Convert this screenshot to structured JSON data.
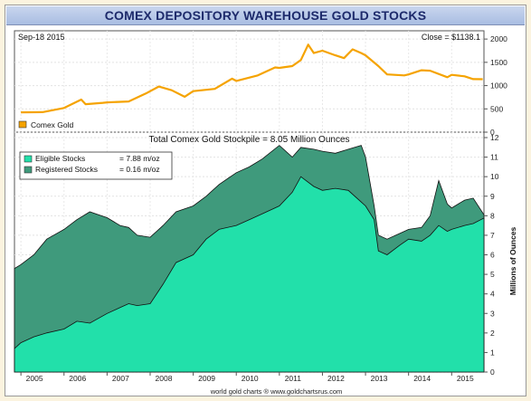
{
  "chart_title": "COMEX DEPOSITORY WAREHOUSE GOLD STOCKS",
  "footer": "world gold charts ® www.goldchartsrus.com",
  "colors": {
    "gold": "#f5a300",
    "eligible": "#22e0aa",
    "registered": "#3f9a7c",
    "frame": "#999999",
    "title_text": "#1d2a6b"
  },
  "chart_data": [
    {
      "type": "line",
      "panel": "top",
      "date_label": "Sep-18  2015",
      "close_label": "Close = $1138.1",
      "legend": [
        {
          "name": "Comex Gold",
          "color": "#f5a300"
        }
      ],
      "ylim": [
        0,
        2100
      ],
      "yticks": [
        "0",
        "500",
        "1000",
        "1500",
        "2000"
      ],
      "series": [
        {
          "name": "Comex Gold",
          "x": [
            2005.0,
            2005.5,
            2006.0,
            2006.4,
            2006.5,
            2006.9,
            2007.0,
            2007.5,
            2007.9,
            2008.2,
            2008.5,
            2008.8,
            2009.0,
            2009.5,
            2009.9,
            2010.0,
            2010.5,
            2010.9,
            2011.0,
            2011.3,
            2011.5,
            2011.67,
            2011.8,
            2012.0,
            2012.3,
            2012.5,
            2012.7,
            2012.9,
            2013.0,
            2013.3,
            2013.5,
            2013.9,
            2014.0,
            2014.3,
            2014.5,
            2014.9,
            2015.0,
            2015.3,
            2015.5,
            2015.72
          ],
          "values": [
            425,
            430,
            520,
            700,
            600,
            630,
            640,
            660,
            830,
            980,
            900,
            760,
            880,
            930,
            1150,
            1100,
            1220,
            1390,
            1380,
            1420,
            1550,
            1880,
            1700,
            1750,
            1650,
            1590,
            1780,
            1700,
            1650,
            1420,
            1240,
            1220,
            1240,
            1330,
            1320,
            1180,
            1230,
            1200,
            1140,
            1138
          ]
        }
      ]
    },
    {
      "type": "area",
      "panel": "bottom",
      "title": "Total Comex Gold Stockpile = 8.05 Million Ounces",
      "ylabel": "Millions of Ounces",
      "ylim": [
        0,
        12
      ],
      "yticks": [
        "0",
        "1",
        "2",
        "3",
        "4",
        "5",
        "6",
        "7",
        "8",
        "9",
        "10",
        "11",
        "12"
      ],
      "xticks": [
        "2005",
        "2006",
        "2007",
        "2008",
        "2009",
        "2010",
        "2011",
        "2012",
        "2013",
        "2014",
        "2015"
      ],
      "xlim": [
        2004.85,
        2015.75
      ],
      "legend": [
        {
          "name": "Eligible Stocks",
          "value": "= 7.88 m/oz",
          "color": "#22e0aa"
        },
        {
          "name": "Registered Stocks",
          "value": "= 0.16 m/oz",
          "color": "#3f9a7c"
        }
      ],
      "series": [
        {
          "name": "Eligible Stocks",
          "x": [
            2004.85,
            2005.0,
            2005.3,
            2005.6,
            2006.0,
            2006.3,
            2006.6,
            2007.0,
            2007.3,
            2007.5,
            2007.7,
            2008.0,
            2008.3,
            2008.6,
            2009.0,
            2009.3,
            2009.6,
            2010.0,
            2010.3,
            2010.6,
            2011.0,
            2011.3,
            2011.5,
            2011.8,
            2012.0,
            2012.3,
            2012.6,
            2012.9,
            2013.0,
            2013.2,
            2013.3,
            2013.5,
            2013.8,
            2014.0,
            2014.3,
            2014.5,
            2014.7,
            2014.9,
            2015.0,
            2015.3,
            2015.5,
            2015.75
          ],
          "values": [
            1.2,
            1.5,
            1.8,
            2.0,
            2.2,
            2.6,
            2.5,
            3.0,
            3.3,
            3.5,
            3.4,
            3.5,
            4.5,
            5.6,
            6.0,
            6.8,
            7.3,
            7.5,
            7.8,
            8.1,
            8.5,
            9.2,
            10.0,
            9.5,
            9.3,
            9.4,
            9.3,
            8.7,
            8.5,
            7.8,
            6.2,
            6.0,
            6.5,
            6.8,
            6.7,
            7.0,
            7.5,
            7.2,
            7.3,
            7.5,
            7.6,
            7.88
          ]
        },
        {
          "name": "Total (Eligible + Registered)",
          "x": [
            2004.85,
            2005.0,
            2005.3,
            2005.6,
            2006.0,
            2006.3,
            2006.6,
            2007.0,
            2007.3,
            2007.5,
            2007.7,
            2008.0,
            2008.3,
            2008.6,
            2009.0,
            2009.3,
            2009.6,
            2010.0,
            2010.3,
            2010.6,
            2011.0,
            2011.3,
            2011.5,
            2011.8,
            2012.0,
            2012.3,
            2012.6,
            2012.9,
            2013.0,
            2013.2,
            2013.3,
            2013.5,
            2013.8,
            2014.0,
            2014.3,
            2014.5,
            2014.7,
            2014.9,
            2015.0,
            2015.3,
            2015.5,
            2015.75
          ],
          "values": [
            5.3,
            5.5,
            6.0,
            6.8,
            7.3,
            7.8,
            8.2,
            7.9,
            7.5,
            7.4,
            7.0,
            6.9,
            7.5,
            8.2,
            8.5,
            9.0,
            9.6,
            10.2,
            10.5,
            10.9,
            11.6,
            11.0,
            11.5,
            11.4,
            11.3,
            11.2,
            11.4,
            11.6,
            11.0,
            8.5,
            7.0,
            6.8,
            7.1,
            7.3,
            7.4,
            8.0,
            9.8,
            8.6,
            8.4,
            8.8,
            8.9,
            8.05
          ]
        }
      ]
    }
  ]
}
